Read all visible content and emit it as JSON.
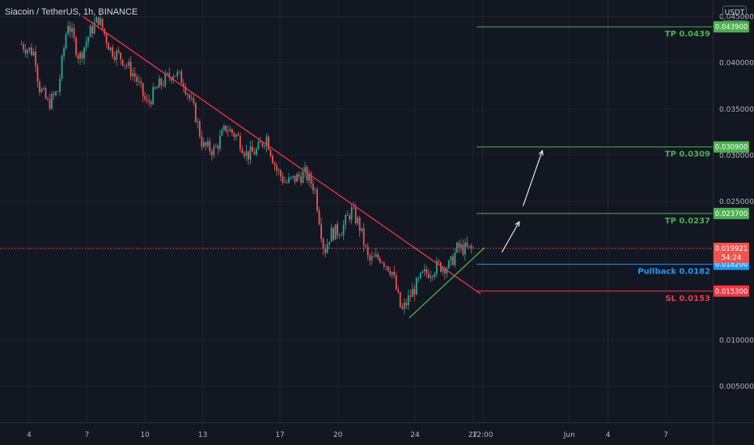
{
  "header": {
    "symbol": "Siacoin / TetherUS, 1h, BINANCE",
    "currency": "USDT"
  },
  "colors": {
    "background": "#131722",
    "grid": "#1e222d",
    "axis_text": "#b2b5be",
    "candle_up": "#26a69a",
    "candle_down": "#ef5350",
    "downtrend": "#f23645",
    "uptrend": "#4caf50",
    "tp_line": "#4caf50",
    "pullback_line": "#2196f3",
    "sl_line": "#f23645",
    "price_line": "#ef5350",
    "arrow": "#e0e3eb"
  },
  "chart_data": {
    "type": "candlestick",
    "y_axis": {
      "range": [
        0.0011,
        0.0468
      ],
      "ticks": [
        {
          "value": 0.045,
          "label": "0.045000"
        },
        {
          "value": 0.04,
          "label": "0.040000"
        },
        {
          "value": 0.035,
          "label": "0.035000"
        },
        {
          "value": 0.03,
          "label": "0.030000"
        },
        {
          "value": 0.025,
          "label": "0.025000"
        },
        {
          "value": 0.01,
          "label": "0.010000"
        },
        {
          "value": 0.005,
          "label": "0.005000"
        }
      ]
    },
    "x_axis": {
      "ticks": [
        {
          "value": 0,
          "label": "4"
        },
        {
          "value": 3,
          "label": "7"
        },
        {
          "value": 6,
          "label": "10"
        },
        {
          "value": 9,
          "label": "13"
        },
        {
          "value": 13,
          "label": "17"
        },
        {
          "value": 16,
          "label": "20"
        },
        {
          "value": 20,
          "label": "24"
        },
        {
          "value": 23,
          "label": "27"
        },
        {
          "value": 23.5,
          "label": "12:00"
        },
        {
          "value": 28,
          "label": "Jun"
        },
        {
          "value": 30,
          "label": "4"
        },
        {
          "value": 33,
          "label": "7"
        }
      ]
    },
    "price_path": [
      [
        -0.4,
        0.042
      ],
      [
        0.3,
        0.041
      ],
      [
        0.5,
        0.0375
      ],
      [
        1.0,
        0.0355
      ],
      [
        1.5,
        0.037
      ],
      [
        2.0,
        0.0445
      ],
      [
        2.6,
        0.0405
      ],
      [
        3.2,
        0.0435
      ],
      [
        3.6,
        0.0448
      ],
      [
        4.2,
        0.0415
      ],
      [
        4.8,
        0.0405
      ],
      [
        5.5,
        0.0385
      ],
      [
        6.1,
        0.0355
      ],
      [
        6.7,
        0.0375
      ],
      [
        7.5,
        0.039
      ],
      [
        8.0,
        0.038
      ],
      [
        8.6,
        0.0345
      ],
      [
        9.0,
        0.031
      ],
      [
        9.6,
        0.0305
      ],
      [
        10.2,
        0.033
      ],
      [
        10.8,
        0.032
      ],
      [
        11.3,
        0.03
      ],
      [
        11.8,
        0.0305
      ],
      [
        12.3,
        0.032
      ],
      [
        12.8,
        0.0285
      ],
      [
        13.3,
        0.027
      ],
      [
        13.8,
        0.0275
      ],
      [
        14.3,
        0.028
      ],
      [
        14.8,
        0.0265
      ],
      [
        15.3,
        0.0195
      ],
      [
        15.6,
        0.0215
      ],
      [
        16.2,
        0.022
      ],
      [
        16.7,
        0.024
      ],
      [
        17.1,
        0.0225
      ],
      [
        17.6,
        0.0185
      ],
      [
        18.2,
        0.019
      ],
      [
        18.8,
        0.0175
      ],
      [
        19.3,
        0.013
      ],
      [
        19.8,
        0.015
      ],
      [
        20.4,
        0.017
      ],
      [
        21.2,
        0.018
      ],
      [
        21.8,
        0.018
      ],
      [
        22.2,
        0.02
      ],
      [
        22.8,
        0.0198
      ],
      [
        23.1,
        0.0199
      ]
    ],
    "downtrend_line": [
      [
        2.8,
        0.045
      ],
      [
        23.4,
        0.015
      ]
    ],
    "uptrend_line": [
      [
        19.7,
        0.0124
      ],
      [
        23.6,
        0.02
      ]
    ],
    "current_price": {
      "value": 0.019921,
      "label": "0.019921",
      "countdown": "54:24"
    },
    "levels": [
      {
        "name": "TP 0.0439",
        "value": 0.0439,
        "tag": "0.043900",
        "kind": "tp"
      },
      {
        "name": "TP 0.0309",
        "value": 0.0309,
        "tag": "0.030900",
        "kind": "tp"
      },
      {
        "name": "TP 0.0237",
        "value": 0.0237,
        "tag": "0.023700",
        "kind": "tp"
      },
      {
        "name": "Pullback 0.0182",
        "value": 0.0182,
        "tag": "0.018200",
        "kind": "pullback"
      },
      {
        "name": "SL 0.0153",
        "value": 0.0153,
        "tag": "0.015300",
        "kind": "sl"
      }
    ],
    "level_x_start": 23.2,
    "arrows": [
      [
        [
          24.5,
          0.0195
        ],
        [
          25.4,
          0.0228
        ]
      ],
      [
        [
          25.6,
          0.0245
        ],
        [
          26.6,
          0.0305
        ]
      ]
    ]
  }
}
